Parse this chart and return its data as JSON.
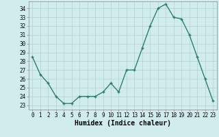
{
  "x": [
    0,
    1,
    2,
    3,
    4,
    5,
    6,
    7,
    8,
    9,
    10,
    11,
    12,
    13,
    14,
    15,
    16,
    17,
    18,
    19,
    20,
    21,
    22,
    23
  ],
  "y": [
    28.5,
    26.5,
    25.5,
    24.0,
    23.2,
    23.2,
    24.0,
    24.0,
    24.0,
    24.5,
    25.5,
    24.5,
    27.0,
    27.0,
    29.5,
    32.0,
    34.0,
    34.5,
    33.0,
    32.8,
    31.0,
    28.5,
    26.0,
    23.5
  ],
  "line_color": "#2d7d6e",
  "marker": "+",
  "bg_color": "#d0ecec",
  "grid_color": "#b8d4d4",
  "xlabel": "Humidex (Indice chaleur)",
  "ylim": [
    22.5,
    34.8
  ],
  "xlim": [
    -0.5,
    23.5
  ],
  "yticks": [
    23,
    24,
    25,
    26,
    27,
    28,
    29,
    30,
    31,
    32,
    33,
    34
  ],
  "xticks": [
    0,
    1,
    2,
    3,
    4,
    5,
    6,
    7,
    8,
    9,
    10,
    11,
    12,
    13,
    14,
    15,
    16,
    17,
    18,
    19,
    20,
    21,
    22,
    23
  ],
  "tick_fontsize": 5.5,
  "xlabel_fontsize": 7,
  "line_width": 1.0,
  "marker_size": 3.5,
  "marker_edge_width": 1.0
}
